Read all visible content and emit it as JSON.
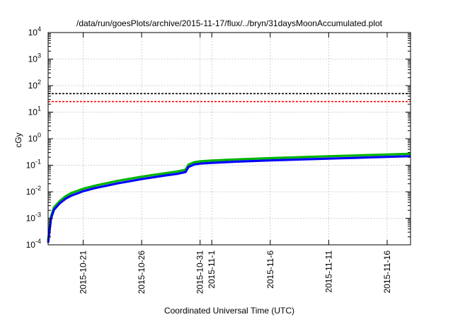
{
  "chart_data": {
    "type": "line",
    "title": "/data/run/goesPlots/archive/2015-11-17/flux/../bryn/31daysMoonAccumulated.plot",
    "xlabel": "Coordinated Universal Time (UTC)",
    "ylabel": "cGy",
    "yscale": "log",
    "grid": true,
    "xlim": [
      "2015-10-18",
      "2015-11-18"
    ],
    "ylim": [
      0.0001,
      10000
    ],
    "x_ticks": [
      {
        "date": "2015-10-21",
        "label": "2015-10-21"
      },
      {
        "date": "2015-10-26",
        "label": "2015-10-26"
      },
      {
        "date": "2015-10-31",
        "label": "2015-10-31"
      },
      {
        "date": "2015-11-01",
        "label": "2015-11-1"
      },
      {
        "date": "2015-11-06",
        "label": "2015-11-6"
      },
      {
        "date": "2015-11-11",
        "label": "2015-11-11"
      },
      {
        "date": "2015-11-16",
        "label": "2015-11-16"
      }
    ],
    "y_ticks": [
      {
        "value": 0.0001,
        "base": "10",
        "exp": "-4"
      },
      {
        "value": 0.001,
        "base": "10",
        "exp": "-3"
      },
      {
        "value": 0.01,
        "base": "10",
        "exp": "-2"
      },
      {
        "value": 0.1,
        "base": "10",
        "exp": "-1"
      },
      {
        "value": 1,
        "base": "10",
        "exp": "0"
      },
      {
        "value": 10,
        "base": "10",
        "exp": "1"
      },
      {
        "value": 100,
        "base": "10",
        "exp": "2"
      },
      {
        "value": 1000,
        "base": "10",
        "exp": "3"
      },
      {
        "value": 10000,
        "base": "10",
        "exp": "4"
      }
    ],
    "reference_lines": [
      {
        "value": 50,
        "color": "#000000",
        "style": "dashed"
      },
      {
        "value": 25,
        "color": "#ff0000",
        "style": "dashed"
      }
    ],
    "series": [
      {
        "color": "#00b400",
        "x": [
          "2015-10-18T00:00",
          "2015-10-18T06:00",
          "2015-10-18T12:00",
          "2015-10-19T00:00",
          "2015-10-19T12:00",
          "2015-10-20T00:00",
          "2015-10-21T00:00",
          "2015-10-22T00:00",
          "2015-10-23T00:00",
          "2015-10-24T00:00",
          "2015-10-25T00:00",
          "2015-10-26T00:00",
          "2015-10-27T00:00",
          "2015-10-28T00:00",
          "2015-10-29T00:00",
          "2015-10-29T12:00",
          "2015-10-29T18:00",
          "2015-10-30T00:00",
          "2015-10-30T12:00",
          "2015-10-31T00:00",
          "2015-11-01T00:00",
          "2015-11-03T00:00",
          "2015-11-06T00:00",
          "2015-11-09T00:00",
          "2015-11-12T00:00",
          "2015-11-15T00:00",
          "2015-11-18T00:00"
        ],
        "y": [
          0.00015,
          0.0012,
          0.0026,
          0.0045,
          0.0068,
          0.009,
          0.013,
          0.017,
          0.021,
          0.026,
          0.031,
          0.037,
          0.043,
          0.05,
          0.058,
          0.064,
          0.068,
          0.105,
          0.13,
          0.14,
          0.15,
          0.165,
          0.185,
          0.205,
          0.225,
          0.245,
          0.27
        ]
      },
      {
        "color": "#0000ff",
        "x": [
          "2015-10-18T00:00",
          "2015-10-18T06:00",
          "2015-10-18T12:00",
          "2015-10-19T00:00",
          "2015-10-19T12:00",
          "2015-10-20T00:00",
          "2015-10-21T00:00",
          "2015-10-22T00:00",
          "2015-10-23T00:00",
          "2015-10-24T00:00",
          "2015-10-25T00:00",
          "2015-10-26T00:00",
          "2015-10-27T00:00",
          "2015-10-28T00:00",
          "2015-10-29T00:00",
          "2015-10-29T12:00",
          "2015-10-29T18:00",
          "2015-10-30T00:00",
          "2015-10-30T12:00",
          "2015-10-31T00:00",
          "2015-11-01T00:00",
          "2015-11-03T00:00",
          "2015-11-06T00:00",
          "2015-11-09T00:00",
          "2015-11-12T00:00",
          "2015-11-15T00:00",
          "2015-11-18T00:00"
        ],
        "y": [
          0.00012,
          0.001,
          0.0021,
          0.0037,
          0.0055,
          0.0072,
          0.0105,
          0.0138,
          0.017,
          0.021,
          0.025,
          0.03,
          0.035,
          0.041,
          0.047,
          0.052,
          0.055,
          0.085,
          0.107,
          0.115,
          0.123,
          0.136,
          0.152,
          0.168,
          0.183,
          0.2,
          0.22
        ]
      }
    ]
  }
}
